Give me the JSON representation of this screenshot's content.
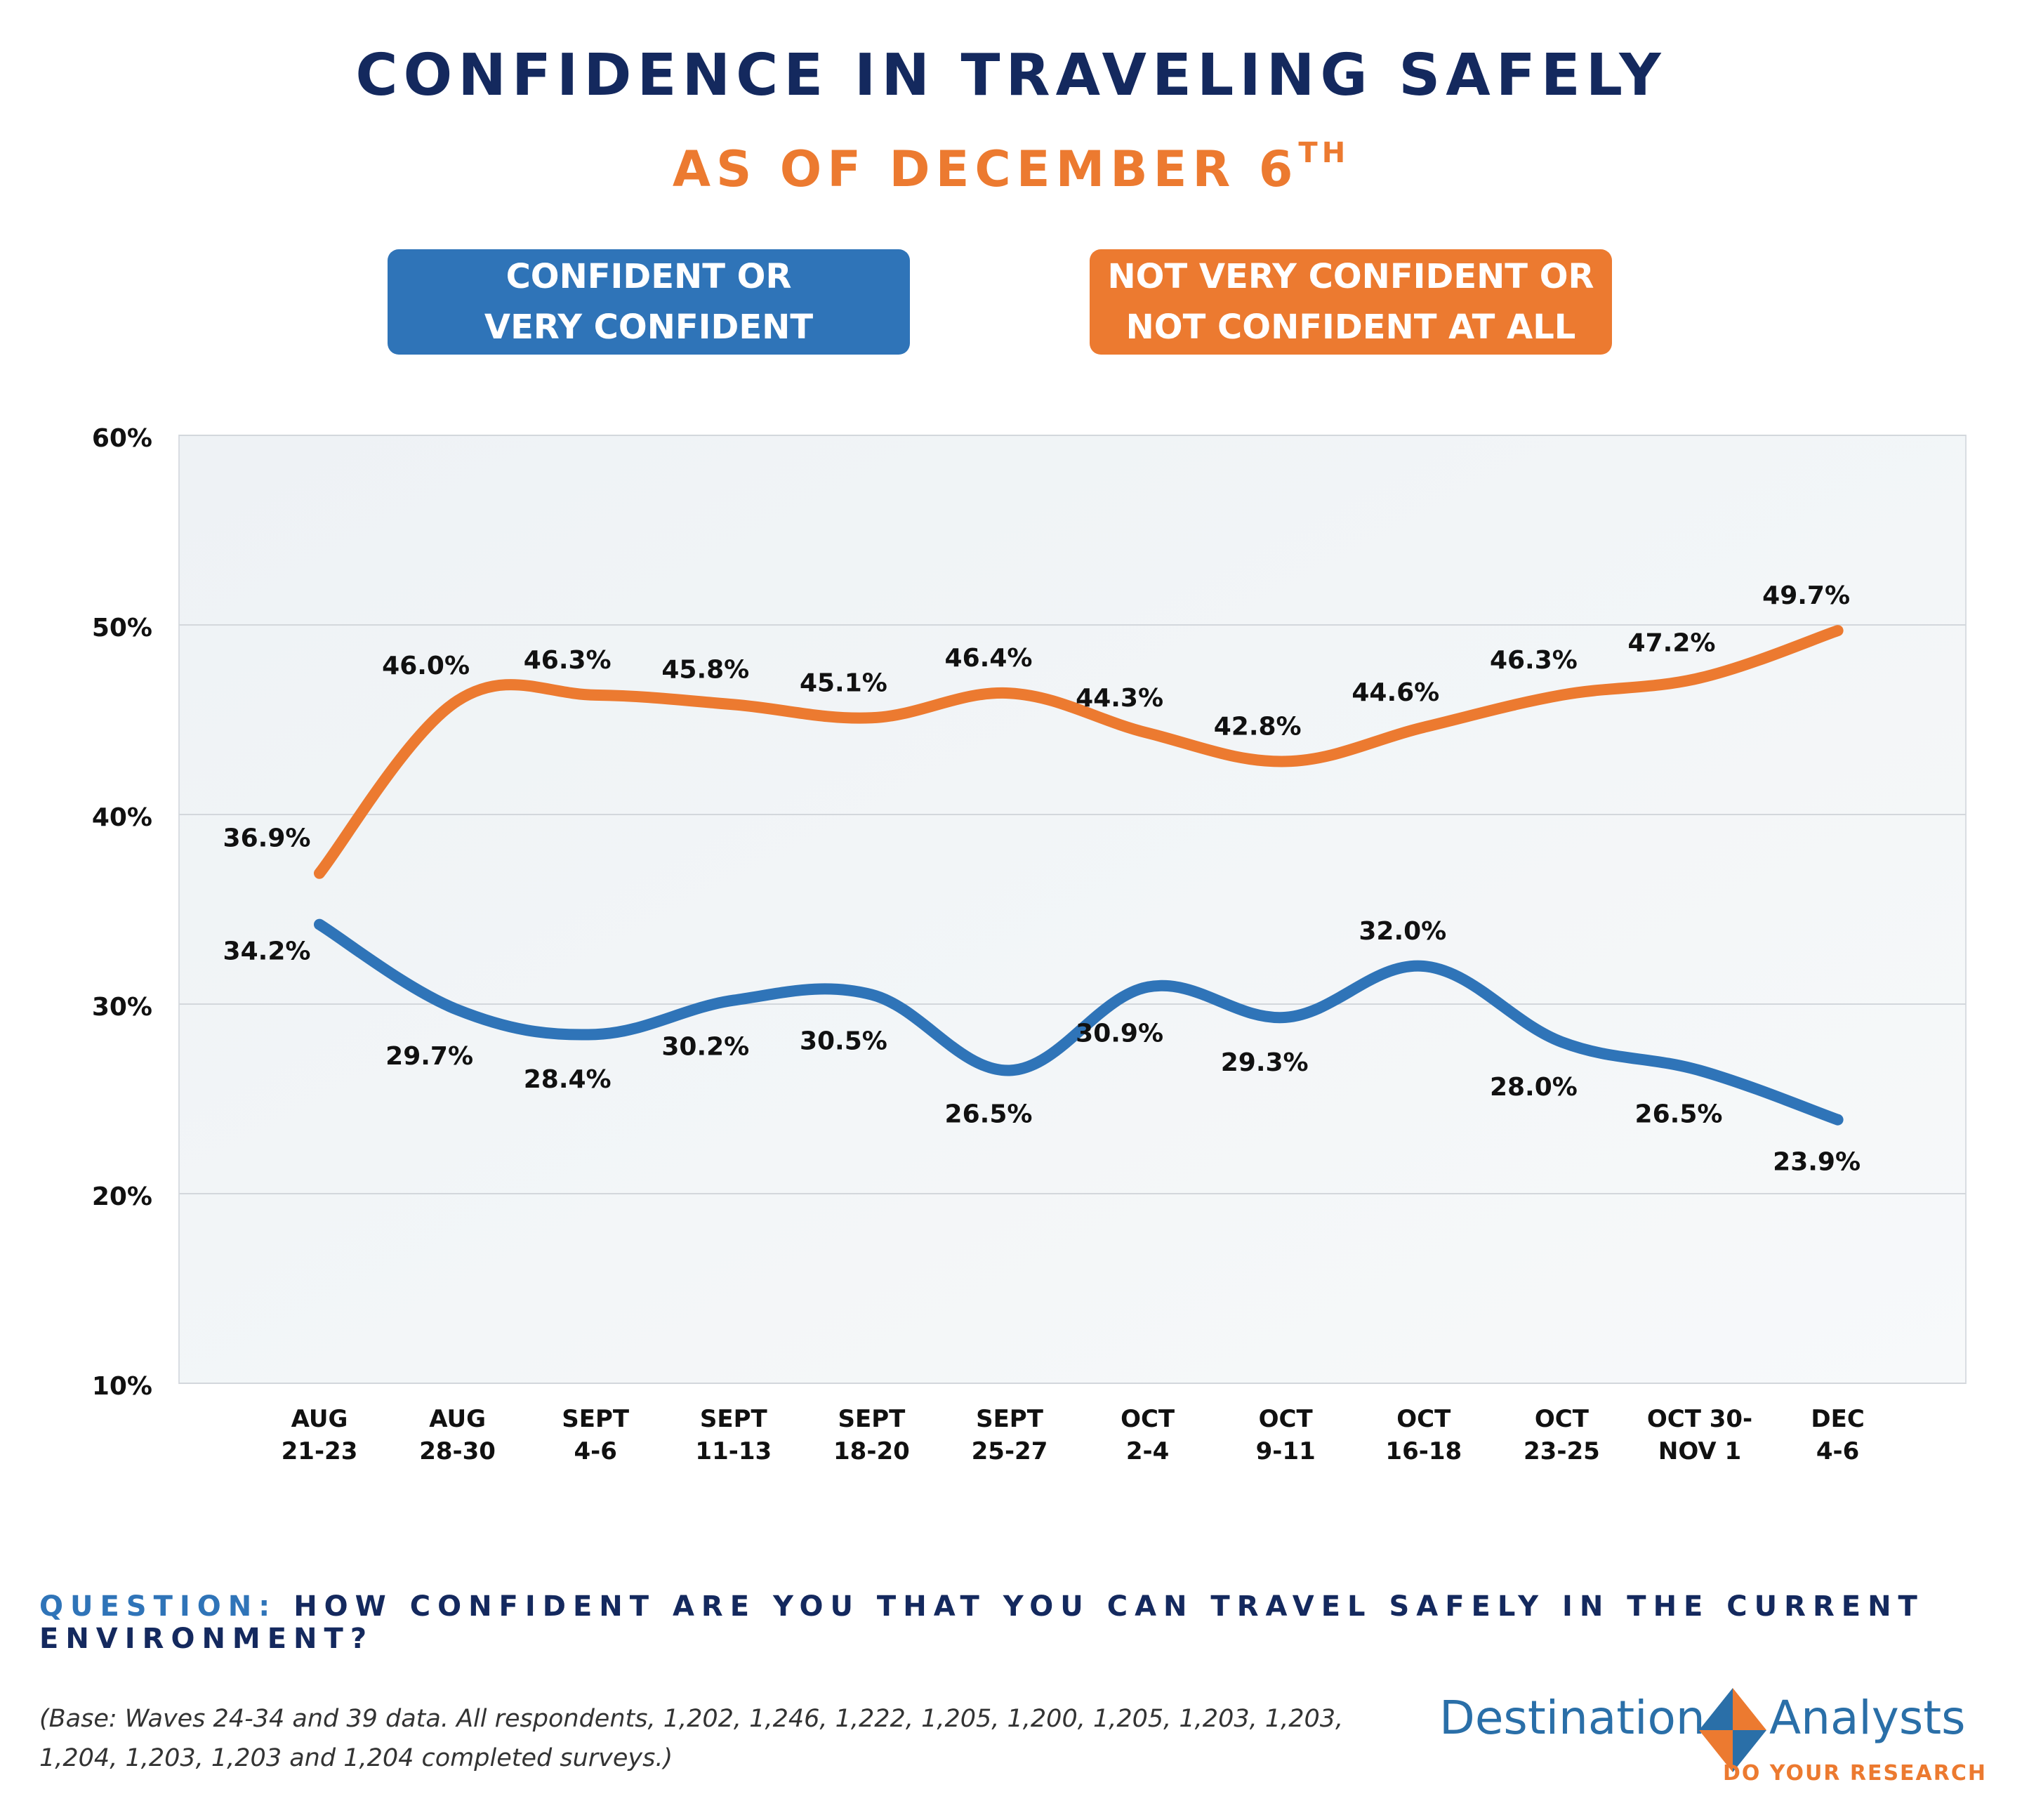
{
  "header": {
    "title": "CONFIDENCE IN TRAVELING SAFELY",
    "subtitle": "AS OF DECEMBER 6",
    "subtitle_sup": "TH"
  },
  "legend": {
    "blue_line1": "CONFIDENT OR",
    "blue_line2": "VERY CONFIDENT",
    "orange_line1": "NOT VERY CONFIDENT OR",
    "orange_line2": "NOT CONFIDENT AT ALL"
  },
  "chart_data": {
    "type": "line",
    "categories": [
      [
        "AUG",
        "21-23"
      ],
      [
        "AUG",
        "28-30"
      ],
      [
        "SEPT",
        "4-6"
      ],
      [
        "SEPT",
        "11-13"
      ],
      [
        "SEPT",
        "18-20"
      ],
      [
        "SEPT",
        "25-27"
      ],
      [
        "OCT",
        "2-4"
      ],
      [
        "OCT",
        "9-11"
      ],
      [
        "OCT",
        "16-18"
      ],
      [
        "OCT",
        "23-25"
      ],
      [
        "OCT 30-",
        "NOV 1"
      ],
      [
        "DEC",
        "4-6"
      ]
    ],
    "series": [
      {
        "name": "CONFIDENT OR VERY CONFIDENT",
        "color": "#2f74b8",
        "values": [
          34.2,
          29.7,
          28.4,
          30.2,
          30.5,
          26.5,
          30.9,
          29.3,
          32.0,
          28.0,
          26.5,
          23.9
        ],
        "labels": [
          "34.2%",
          "29.7%",
          "28.4%",
          "30.2%",
          "30.5%",
          "26.5%",
          "30.9%",
          "29.3%",
          "32.0%",
          "28.0%",
          "26.5%",
          "23.9%"
        ]
      },
      {
        "name": "NOT VERY CONFIDENT OR NOT CONFIDENT AT ALL",
        "color": "#ec7a30",
        "values": [
          36.9,
          46.0,
          46.3,
          45.8,
          45.1,
          46.4,
          44.3,
          42.8,
          44.6,
          46.3,
          47.2,
          49.7
        ],
        "labels": [
          "36.9%",
          "46.0%",
          "46.3%",
          "45.8%",
          "45.1%",
          "46.4%",
          "44.3%",
          "42.8%",
          "44.6%",
          "46.3%",
          "47.2%",
          "49.7%"
        ]
      }
    ],
    "y_ticks": [
      "10%",
      "20%",
      "30%",
      "40%",
      "50%",
      "60%"
    ],
    "ylim": [
      10,
      60
    ],
    "grid": true
  },
  "question": {
    "label": "QUESTION:",
    "text": " HOW CONFIDENT ARE YOU THAT YOU CAN TRAVEL SAFELY IN THE CURRENT ENVIRONMENT?"
  },
  "base_note": {
    "line1": "(Base: Waves 24-34 and 39 data. All respondents, 1,202, 1,246, 1,222, 1,205, 1,200, 1,205, 1,203, 1,203,",
    "line2": "1,204, 1,203, 1,203 and 1,204 completed surveys.)"
  },
  "logo": {
    "left_word": "Destination",
    "right_word": "Analysts",
    "tagline": "DO YOUR RESEARCH"
  }
}
